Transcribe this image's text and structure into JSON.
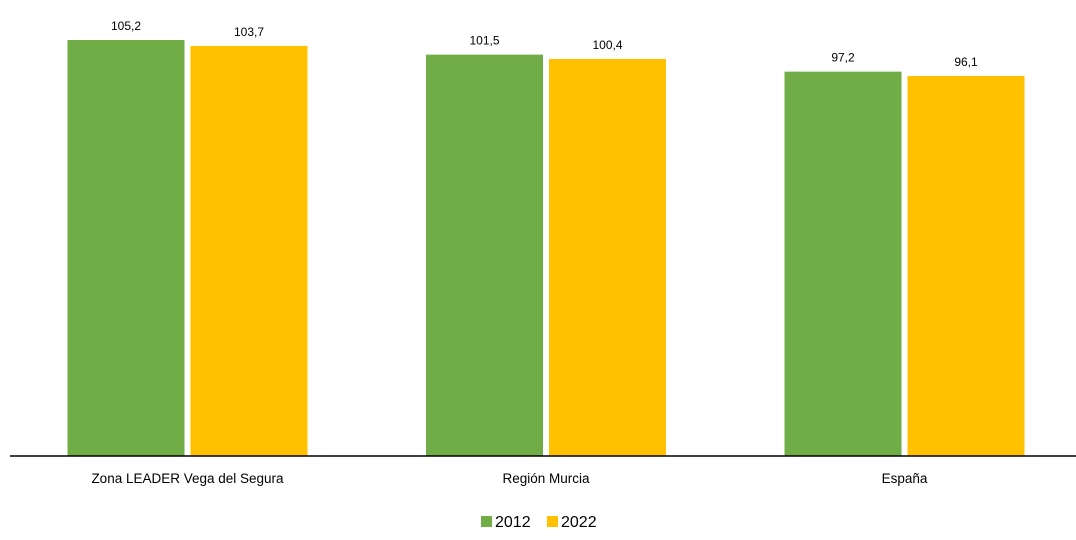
{
  "chart_data": {
    "type": "bar",
    "categories": [
      "Zona LEADER Vega del Segura",
      "Región Murcia",
      "España"
    ],
    "series": [
      {
        "name": "2012",
        "values": [
          105.2,
          101.5,
          97.2
        ],
        "color": "#70AD47"
      },
      {
        "name": "2022",
        "values": [
          103.7,
          100.4,
          96.1
        ],
        "color": "#FFC000"
      }
    ],
    "data_labels": [
      [
        "105,2",
        "101,5",
        "97,2"
      ],
      [
        "103,7",
        "100,4",
        "96,1"
      ]
    ],
    "title": "",
    "xlabel": "",
    "ylabel": "",
    "ylim": [
      0,
      105.2
    ],
    "grid": false,
    "legend_position": "bottom"
  }
}
